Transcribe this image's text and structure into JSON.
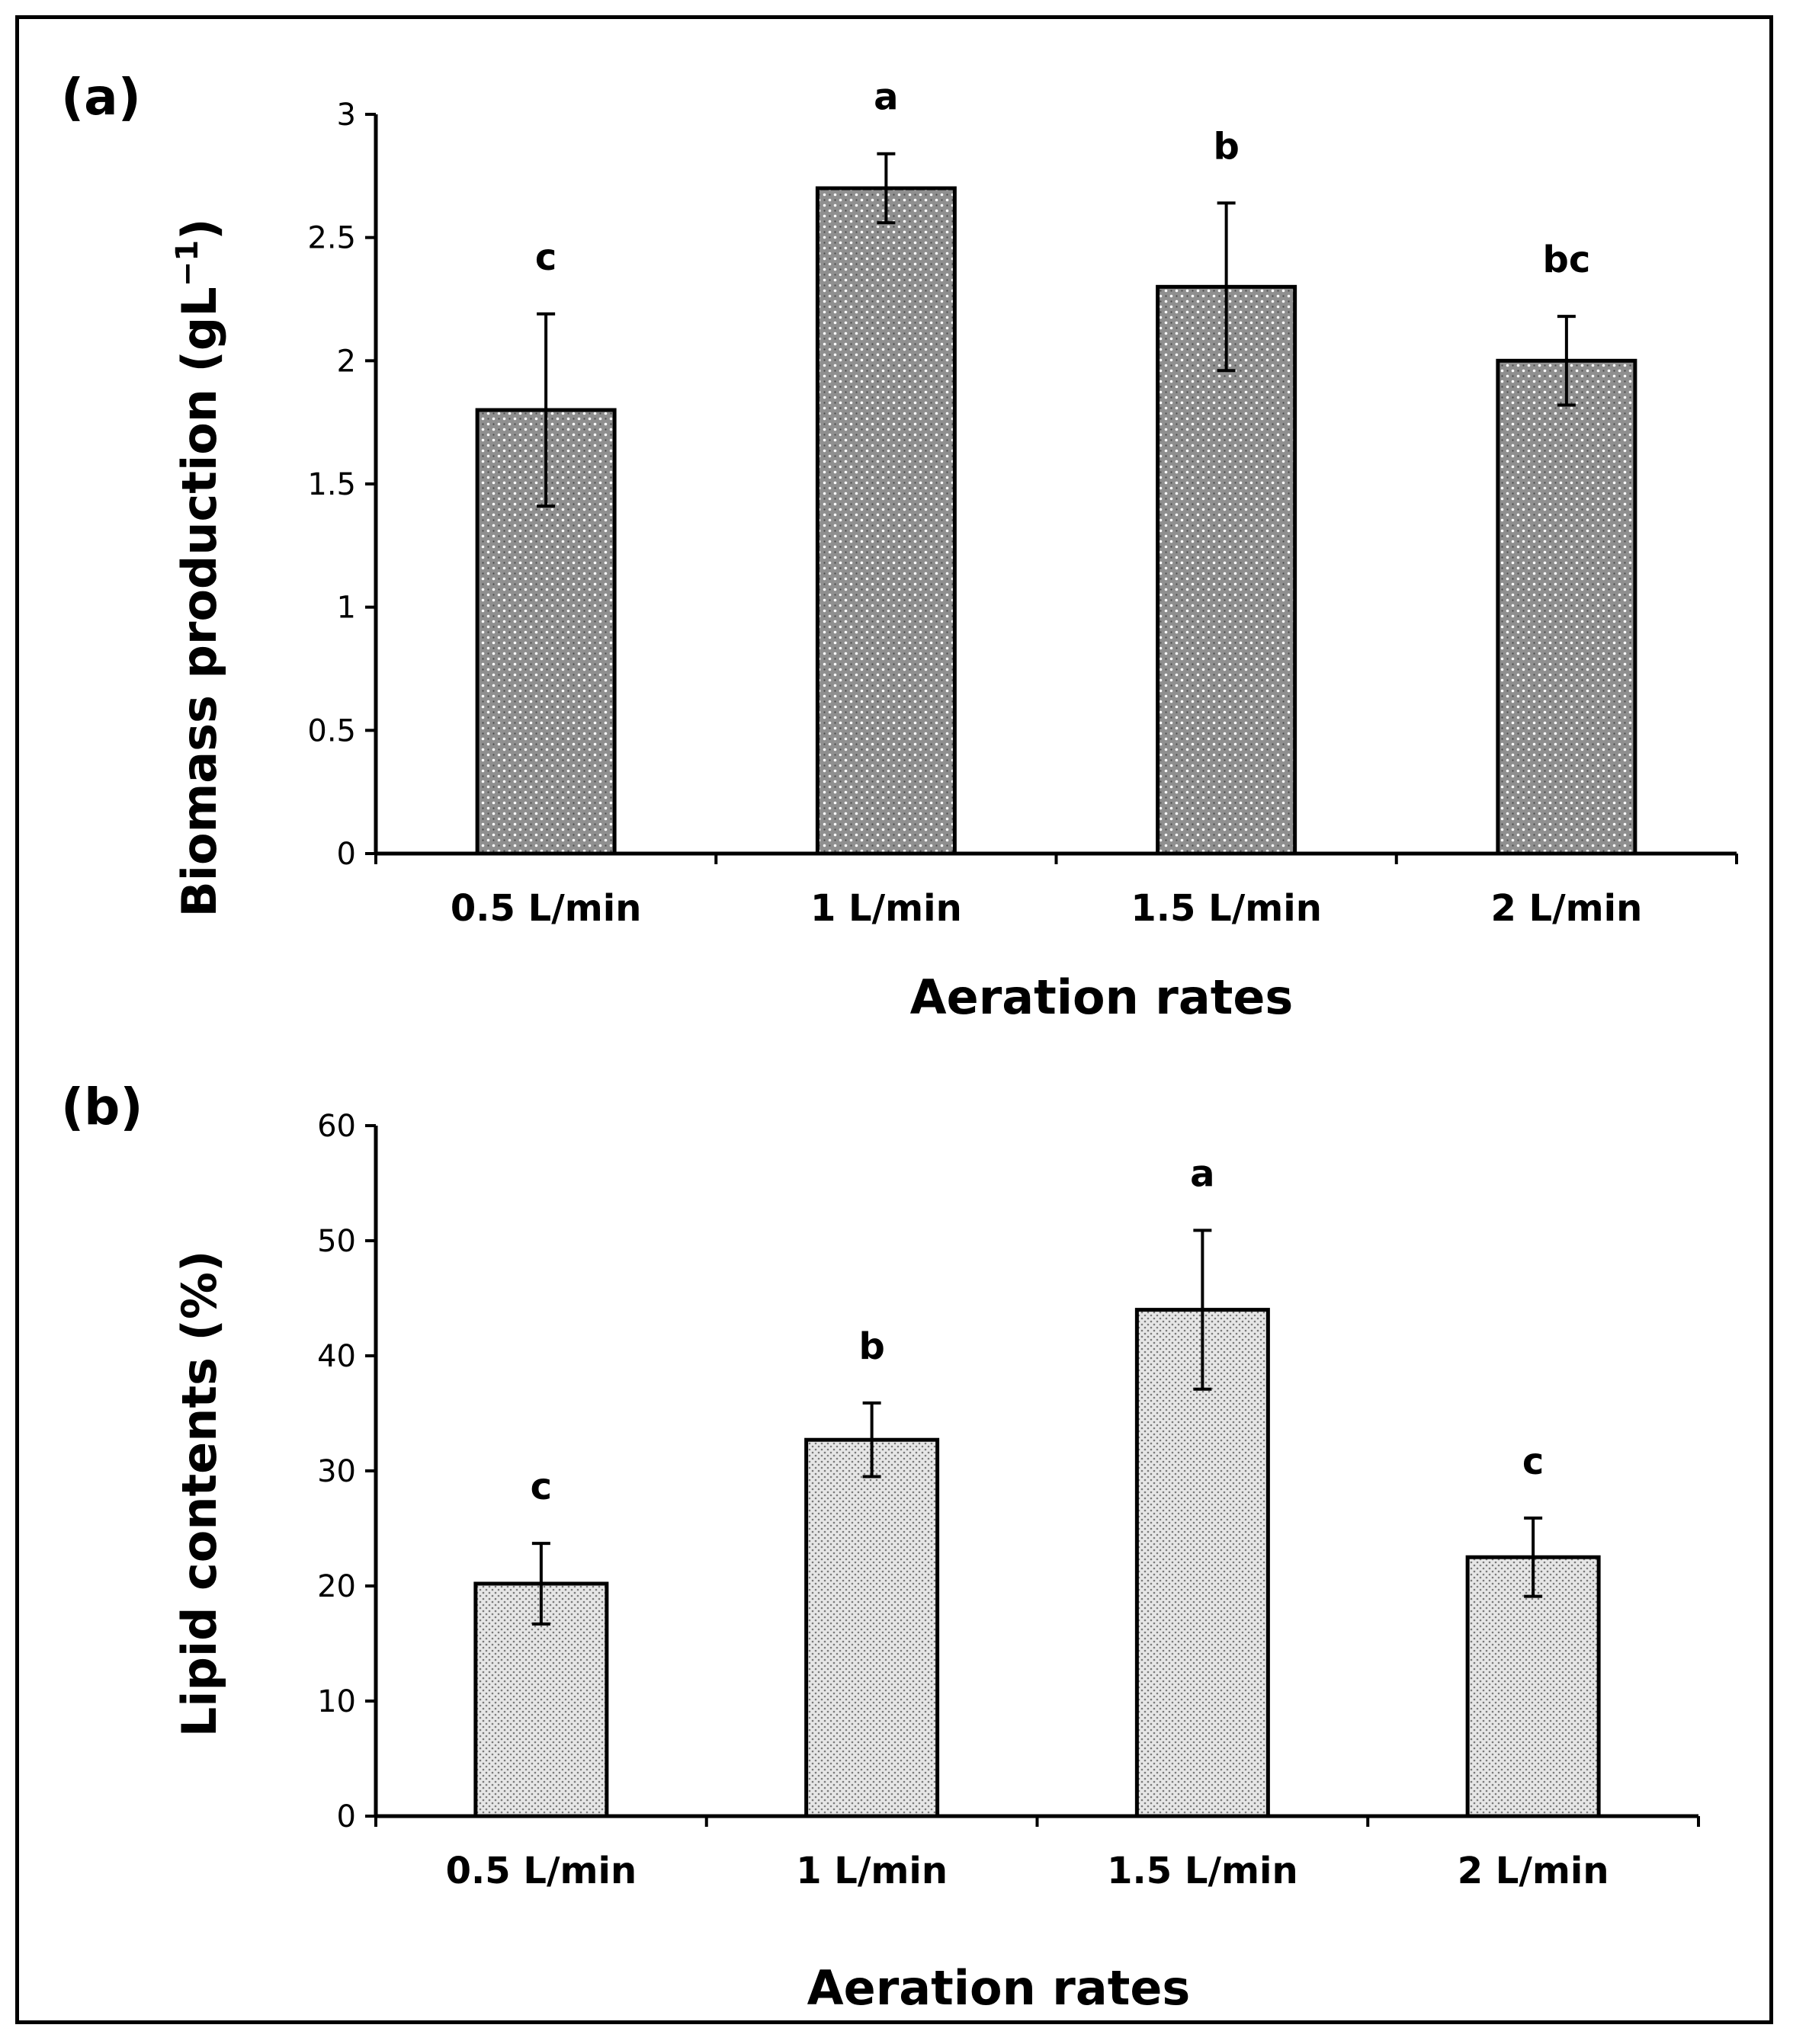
{
  "chart_data": [
    {
      "type": "bar",
      "panel_label": "(a)",
      "categories": [
        "0.5 L/min",
        "1 L/min",
        "1.5 L/min",
        "2 L/min"
      ],
      "values": [
        1.8,
        2.7,
        2.3,
        2.0
      ],
      "errors": [
        0.39,
        0.14,
        0.34,
        0.18
      ],
      "significance": [
        "c",
        "a",
        "b",
        "bc"
      ],
      "ylim": [
        0,
        3
      ],
      "yticks": [
        0,
        0.5,
        1,
        1.5,
        2,
        2.5,
        3
      ],
      "ytick_labels": [
        "0",
        "0.5",
        "1",
        "1.5",
        "2",
        "2.5",
        "3"
      ],
      "ylabel": "Biomass production (gL",
      "ylabel_sup": "−1",
      "ylabel_end": ")",
      "xlabel": "Aeration rates",
      "bar_color": "#9a9a9a",
      "pattern": "dense-dots"
    },
    {
      "type": "bar",
      "panel_label": "(b)",
      "categories": [
        "0.5 L/min",
        "1 L/min",
        "1.5 L/min",
        "2 L/min"
      ],
      "values": [
        20.2,
        32.7,
        44.0,
        22.5
      ],
      "errors": [
        3.5,
        3.2,
        6.9,
        3.4
      ],
      "significance": [
        "c",
        "b",
        "a",
        "c"
      ],
      "ylim": [
        0,
        60
      ],
      "yticks": [
        0,
        10,
        20,
        30,
        40,
        50,
        60
      ],
      "ytick_labels": [
        "0",
        "10",
        "20",
        "30",
        "40",
        "50",
        "60"
      ],
      "ylabel": "Lipid contents (%)",
      "xlabel": "Aeration rates",
      "bar_color": "#cfcfcf",
      "pattern": "fine-dots"
    }
  ]
}
